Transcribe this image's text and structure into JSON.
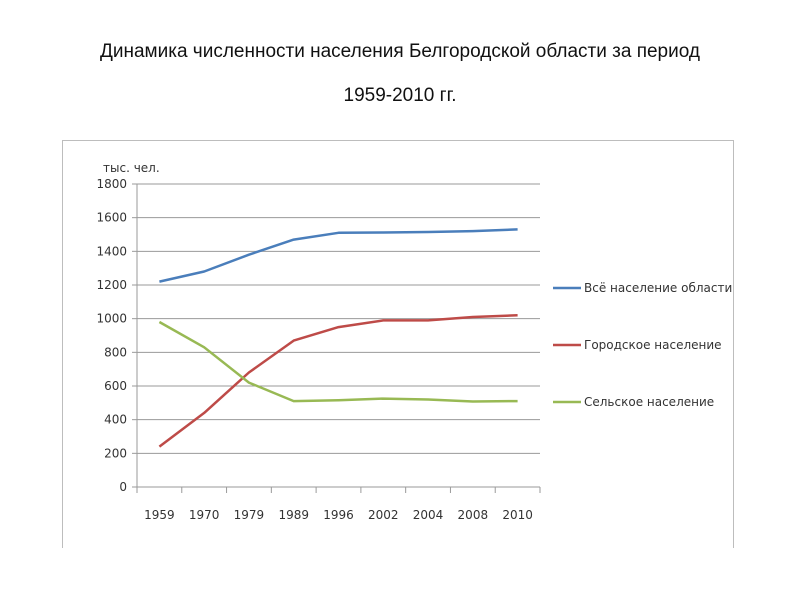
{
  "title_line1": "Динамика численности населения Белгородской области за период",
  "title_line2": "1959-2010 гг.",
  "chart_data": {
    "type": "line",
    "title": "Динамика численности населения Белгородской области за период 1959-2010 гг.",
    "ylabel": "тыс. чел.",
    "xlabel": "",
    "ylim": [
      0,
      1800
    ],
    "yticks": [
      0,
      200,
      400,
      600,
      800,
      1000,
      1200,
      1400,
      1600,
      1800
    ],
    "categories": [
      "1959",
      "1970",
      "1979",
      "1989",
      "1996",
      "2002",
      "2004",
      "2008",
      "2010"
    ],
    "grid": "horizontal",
    "legend": "right",
    "series": [
      {
        "name": "Всё население области",
        "color": "#4a7ebb",
        "values": [
          1220,
          1280,
          1380,
          1470,
          1510,
          1512,
          1515,
          1520,
          1530
        ]
      },
      {
        "name": "Городское население",
        "color": "#be4b48",
        "values": [
          240,
          440,
          680,
          870,
          950,
          990,
          990,
          1010,
          1020
        ]
      },
      {
        "name": "Сельское население",
        "color": "#98b954",
        "values": [
          980,
          830,
          620,
          510,
          515,
          525,
          520,
          508,
          510
        ]
      }
    ]
  }
}
